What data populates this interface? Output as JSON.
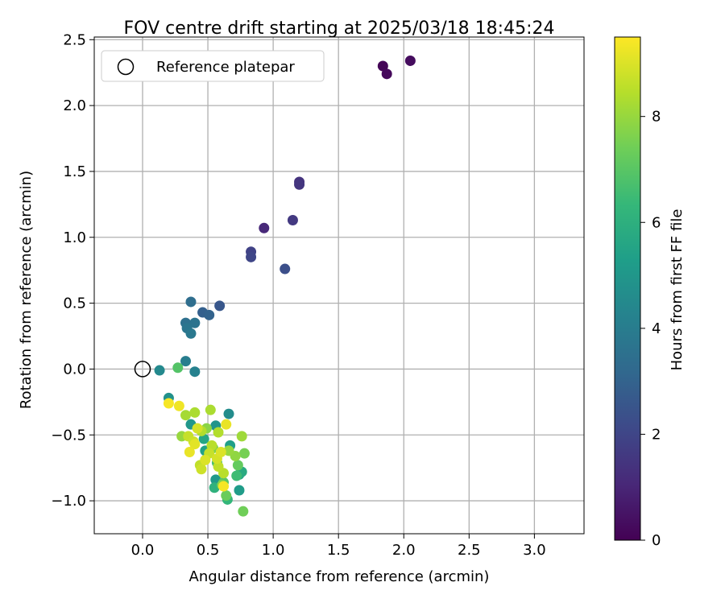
{
  "chart_data": {
    "type": "scatter",
    "title": "FOV centre drift starting at 2025/03/18 18:45:24",
    "xlabel": "Angular distance from reference (arcmin)",
    "ylabel": "Rotation from reference (arcmin)",
    "xlim": [
      -0.37,
      3.38
    ],
    "ylim": [
      -1.25,
      2.52
    ],
    "xticks": [
      0.0,
      0.5,
      1.0,
      1.5,
      2.0,
      2.5,
      3.0
    ],
    "xtick_labels": [
      "0.0",
      "0.5",
      "1.0",
      "1.5",
      "2.0",
      "2.5",
      "3.0"
    ],
    "yticks": [
      -1.0,
      -0.5,
      0.0,
      0.5,
      1.0,
      1.5,
      2.0,
      2.5
    ],
    "ytick_labels": [
      "−1.0",
      "−0.5",
      "0.0",
      "0.5",
      "1.0",
      "1.5",
      "2.0",
      "2.5"
    ],
    "grid": true,
    "legend": {
      "placement": "upper-left",
      "entries": [
        {
          "label": "Reference platepar",
          "marker": "open-circle",
          "x": 0.0,
          "y": 0.0
        }
      ]
    },
    "colorbar": {
      "label": "Hours from first FF file",
      "colormap": "viridis",
      "range": [
        0,
        9.5
      ],
      "ticks": [
        0,
        2,
        4,
        6,
        8
      ],
      "tick_labels": [
        "0",
        "2",
        "4",
        "6",
        "8"
      ],
      "stops": [
        "#440154",
        "#482878",
        "#3e4989",
        "#31688e",
        "#26828e",
        "#1f9e89",
        "#35b779",
        "#6ece58",
        "#b5de2b",
        "#fde725"
      ]
    },
    "points": [
      {
        "x": 1.84,
        "y": 2.3,
        "hours": 0.1
      },
      {
        "x": 1.87,
        "y": 2.24,
        "hours": 0.2
      },
      {
        "x": 2.05,
        "y": 2.34,
        "hours": 0.3
      },
      {
        "x": 0.93,
        "y": 1.07,
        "hours": 1.1
      },
      {
        "x": 1.2,
        "y": 1.42,
        "hours": 1.4
      },
      {
        "x": 1.2,
        "y": 1.4,
        "hours": 1.5
      },
      {
        "x": 1.15,
        "y": 1.13,
        "hours": 1.6
      },
      {
        "x": 0.83,
        "y": 0.89,
        "hours": 1.9
      },
      {
        "x": 0.83,
        "y": 0.85,
        "hours": 2.0
      },
      {
        "x": 1.09,
        "y": 0.76,
        "hours": 2.3
      },
      {
        "x": 0.59,
        "y": 0.48,
        "hours": 2.6
      },
      {
        "x": 0.46,
        "y": 0.43,
        "hours": 2.9
      },
      {
        "x": 0.51,
        "y": 0.41,
        "hours": 3.0
      },
      {
        "x": 0.37,
        "y": 0.51,
        "hours": 3.4
      },
      {
        "x": 0.33,
        "y": 0.35,
        "hours": 3.5
      },
      {
        "x": 0.4,
        "y": 0.35,
        "hours": 3.6
      },
      {
        "x": 0.34,
        "y": 0.31,
        "hours": 3.7
      },
      {
        "x": 0.37,
        "y": 0.27,
        "hours": 3.8
      },
      {
        "x": 0.33,
        "y": 0.06,
        "hours": 4.0
      },
      {
        "x": 0.4,
        "y": -0.02,
        "hours": 4.2
      },
      {
        "x": 0.13,
        "y": -0.01,
        "hours": 4.5
      },
      {
        "x": 0.66,
        "y": -0.34,
        "hours": 4.6
      },
      {
        "x": 0.2,
        "y": -0.22,
        "hours": 4.8
      },
      {
        "x": 0.56,
        "y": -0.43,
        "hours": 4.9
      },
      {
        "x": 0.37,
        "y": -0.42,
        "hours": 5.0
      },
      {
        "x": 0.56,
        "y": -0.84,
        "hours": 5.1
      },
      {
        "x": 0.74,
        "y": -0.92,
        "hours": 5.2
      },
      {
        "x": 0.67,
        "y": -0.58,
        "hours": 5.3
      },
      {
        "x": 0.48,
        "y": -0.62,
        "hours": 5.4
      },
      {
        "x": 0.74,
        "y": -0.8,
        "hours": 5.5
      },
      {
        "x": 0.47,
        "y": -0.53,
        "hours": 5.6
      },
      {
        "x": 0.76,
        "y": -0.78,
        "hours": 5.8
      },
      {
        "x": 0.55,
        "y": -0.9,
        "hours": 6.1
      },
      {
        "x": 0.65,
        "y": -0.99,
        "hours": 6.3
      },
      {
        "x": 0.72,
        "y": -0.81,
        "hours": 6.5
      },
      {
        "x": 0.57,
        "y": -0.71,
        "hours": 6.7
      },
      {
        "x": 0.27,
        "y": 0.01,
        "hours": 6.9
      },
      {
        "x": 0.62,
        "y": -0.86,
        "hours": 7.0
      },
      {
        "x": 0.73,
        "y": -0.73,
        "hours": 7.2
      },
      {
        "x": 0.64,
        "y": -0.96,
        "hours": 7.3
      },
      {
        "x": 0.77,
        "y": -1.08,
        "hours": 7.4
      },
      {
        "x": 0.78,
        "y": -0.64,
        "hours": 7.5
      },
      {
        "x": 0.54,
        "y": -0.6,
        "hours": 7.6
      },
      {
        "x": 0.61,
        "y": -0.88,
        "hours": 7.7
      },
      {
        "x": 0.49,
        "y": -0.45,
        "hours": 7.8
      },
      {
        "x": 0.71,
        "y": -0.66,
        "hours": 7.9
      },
      {
        "x": 0.3,
        "y": -0.51,
        "hours": 8.0
      },
      {
        "x": 0.66,
        "y": -0.62,
        "hours": 8.0
      },
      {
        "x": 0.76,
        "y": -0.51,
        "hours": 8.1
      },
      {
        "x": 0.33,
        "y": -0.35,
        "hours": 8.2
      },
      {
        "x": 0.52,
        "y": -0.31,
        "hours": 8.3
      },
      {
        "x": 0.4,
        "y": -0.33,
        "hours": 8.3
      },
      {
        "x": 0.58,
        "y": -0.48,
        "hours": 8.4
      },
      {
        "x": 0.45,
        "y": -0.47,
        "hours": 8.4
      },
      {
        "x": 0.62,
        "y": -0.79,
        "hours": 8.5
      },
      {
        "x": 0.53,
        "y": -0.58,
        "hours": 8.5
      },
      {
        "x": 0.44,
        "y": -0.73,
        "hours": 8.6
      },
      {
        "x": 0.58,
        "y": -0.74,
        "hours": 8.6
      },
      {
        "x": 0.35,
        "y": -0.51,
        "hours": 8.7
      },
      {
        "x": 0.51,
        "y": -0.64,
        "hours": 8.7
      },
      {
        "x": 0.45,
        "y": -0.76,
        "hours": 8.8
      },
      {
        "x": 0.39,
        "y": -0.55,
        "hours": 8.8
      },
      {
        "x": 0.57,
        "y": -0.68,
        "hours": 8.9
      },
      {
        "x": 0.42,
        "y": -0.45,
        "hours": 8.9
      },
      {
        "x": 0.48,
        "y": -0.69,
        "hours": 9.0
      },
      {
        "x": 0.6,
        "y": -0.63,
        "hours": 9.0
      },
      {
        "x": 0.4,
        "y": -0.57,
        "hours": 9.1
      },
      {
        "x": 0.36,
        "y": -0.63,
        "hours": 9.2
      },
      {
        "x": 0.64,
        "y": -0.42,
        "hours": 9.2
      },
      {
        "x": 0.28,
        "y": -0.28,
        "hours": 9.3
      },
      {
        "x": 0.62,
        "y": -0.89,
        "hours": 9.4
      },
      {
        "x": 0.2,
        "y": -0.26,
        "hours": 9.4
      }
    ]
  }
}
